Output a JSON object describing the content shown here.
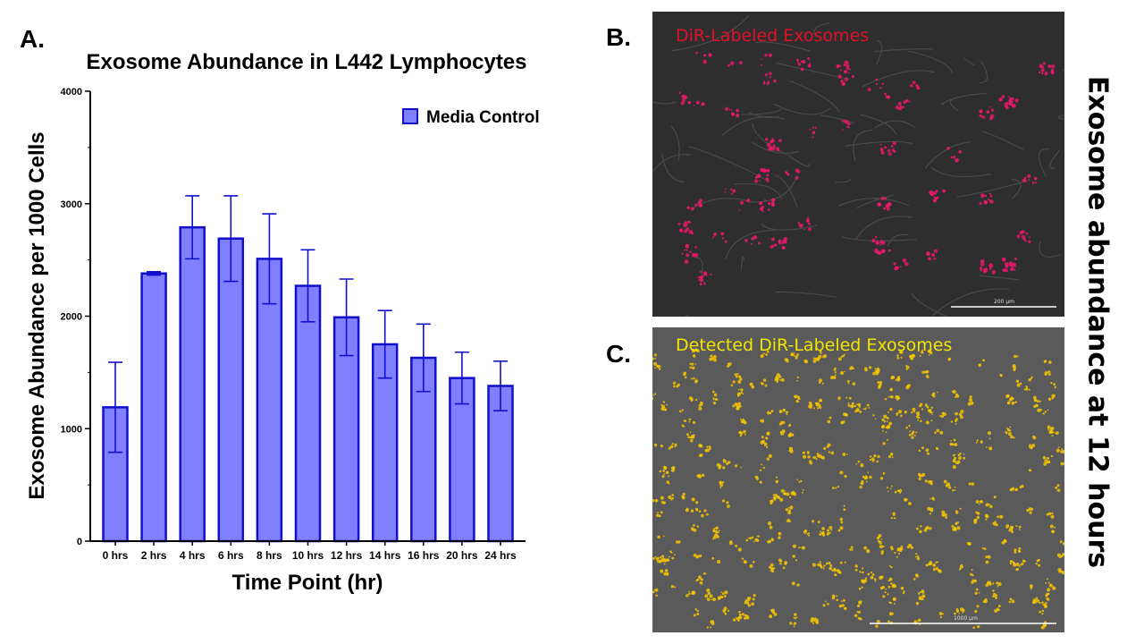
{
  "panels": {
    "a_label": "A.",
    "b_label": "B.",
    "c_label": "C."
  },
  "side_title": "Exosome abundance at 12 hours",
  "image_b": {
    "caption": "DiR-Labeled Exosomes",
    "caption_color": "#e0102a",
    "scale_bar_label": "200 µm"
  },
  "image_c": {
    "caption": "Detected DiR-Labeled Exosomes",
    "caption_color": "#f2e600",
    "scale_bar_label": "1000 µm"
  },
  "chart_data": {
    "type": "bar",
    "title": "Exosome Abundance in L442 Lymphocytes",
    "xlabel": "Time Point (hr)",
    "ylabel": "Exosome Abundance per 1000 Cells",
    "ylim": [
      0,
      4000
    ],
    "yticks": [
      "0",
      "1000",
      "2000",
      "3000",
      "4000"
    ],
    "grid": false,
    "legend_position": "top-right",
    "categories": [
      "0 hrs",
      "2 hrs",
      "4 hrs",
      "6 hrs",
      "8 hrs",
      "10 hrs",
      "12 hrs",
      "14 hrs",
      "16 hrs",
      "20 hrs",
      "24 hrs"
    ],
    "series": [
      {
        "name": "Media Control",
        "color": "#8080ff",
        "edge_color": "#1010cc",
        "values": [
          1190,
          2380,
          2790,
          2690,
          2510,
          2270,
          1990,
          1750,
          1630,
          1450,
          1380
        ],
        "error": [
          400,
          15,
          280,
          380,
          400,
          320,
          340,
          300,
          300,
          230,
          220
        ]
      }
    ]
  }
}
